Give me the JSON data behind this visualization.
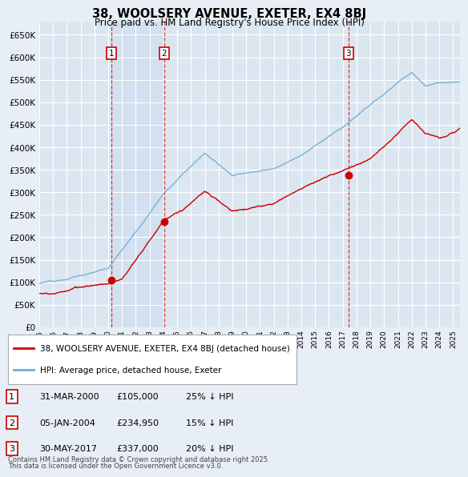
{
  "title": "38, WOOLSERY AVENUE, EXETER, EX4 8BJ",
  "subtitle": "Price paid vs. HM Land Registry's House Price Index (HPI)",
  "hpi_color": "#6baed6",
  "price_color": "#cc0000",
  "background_color": "#e8eef5",
  "chart_bg": "#dce6f0",
  "grid_color": "#ffffff",
  "shaded_color": "#d0dff0",
  "ylim": [
    0,
    680000
  ],
  "yticks": [
    0,
    50000,
    100000,
    150000,
    200000,
    250000,
    300000,
    350000,
    400000,
    450000,
    500000,
    550000,
    600000,
    650000
  ],
  "xlim_start": 1995,
  "xlim_end": 2025.5,
  "trans_times": [
    2000.25,
    2004.04,
    2017.42
  ],
  "trans_prices": [
    105000,
    234950,
    337000
  ],
  "trans_labels": [
    "1",
    "2",
    "3"
  ],
  "legend_label_price": "38, WOOLSERY AVENUE, EXETER, EX4 8BJ (detached house)",
  "legend_label_hpi": "HPI: Average price, detached house, Exeter",
  "table": [
    [
      "1",
      "31-MAR-2000",
      "£105,000",
      "25% ↓ HPI"
    ],
    [
      "2",
      "05-JAN-2004",
      "£234,950",
      "15% ↓ HPI"
    ],
    [
      "3",
      "30-MAY-2017",
      "£337,000",
      "20% ↓ HPI"
    ]
  ],
  "footer1": "Contains HM Land Registry data © Crown copyright and database right 2025.",
  "footer2": "This data is licensed under the Open Government Licence v3.0."
}
